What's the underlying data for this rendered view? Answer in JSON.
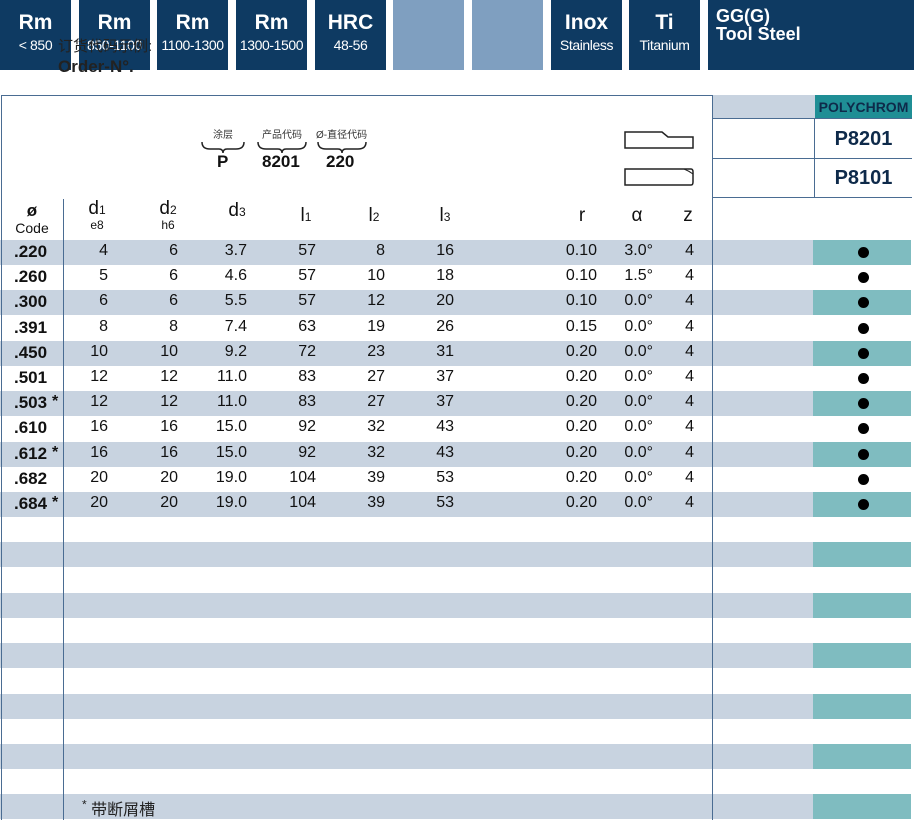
{
  "materials": [
    {
      "big": "Rm",
      "small": "< 850",
      "style": "dark"
    },
    {
      "big": "Rm",
      "small": "850-1100",
      "style": "dark"
    },
    {
      "big": "Rm",
      "small": "1100-1300",
      "style": "dark"
    },
    {
      "big": "Rm",
      "small": "1300-1500",
      "style": "dark"
    },
    {
      "big": "HRC",
      "small": "48-56",
      "style": "dark"
    },
    {
      "big": "",
      "small": "",
      "style": "light"
    },
    {
      "big": "",
      "small": "",
      "style": "light"
    },
    {
      "big": "Inox",
      "small": "Stainless",
      "style": "dark"
    },
    {
      "big": "Ti",
      "small": "Titanium",
      "style": "dark"
    },
    {
      "big": "GG(G)\nTool Steel",
      "small": "",
      "style": "dark"
    }
  ],
  "order_example": {
    "label_cn": "订货代码示例:",
    "label_en": "Order-N°.",
    "coating_label": "涂层",
    "coating_value": "P",
    "product_label": "产品代码",
    "product_value": "8201",
    "diameter_label": "Ø-直径代码",
    "diameter_value": "220"
  },
  "grade_header": "POLYCHROM",
  "grades": [
    "P8201",
    "P8101"
  ],
  "headers": {
    "code_symbol": "ø",
    "code_label": "Code",
    "d1": "d",
    "d1_sub": "1",
    "d1_tol": "e8",
    "d2": "d",
    "d2_sub": "2",
    "d2_tol": "h6",
    "d3": "d",
    "d3_sub": "3",
    "l1": "l",
    "l1_sub": "1",
    "l2": "l",
    "l2_sub": "2",
    "l3": "l",
    "l3_sub": "3",
    "r": "r",
    "alpha": "α",
    "z": "z"
  },
  "rows": [
    {
      "code": ".220",
      "star": "",
      "d1": "4",
      "d2": "6",
      "d3": "3.7",
      "l1": "57",
      "l2": "8",
      "l3": "16",
      "r": "0.10",
      "alpha": "3.0°",
      "z": "4",
      "dot": true
    },
    {
      "code": ".260",
      "star": "",
      "d1": "5",
      "d2": "6",
      "d3": "4.6",
      "l1": "57",
      "l2": "10",
      "l3": "18",
      "r": "0.10",
      "alpha": "1.5°",
      "z": "4",
      "dot": true
    },
    {
      "code": ".300",
      "star": "",
      "d1": "6",
      "d2": "6",
      "d3": "5.5",
      "l1": "57",
      "l2": "12",
      "l3": "20",
      "r": "0.10",
      "alpha": "0.0°",
      "z": "4",
      "dot": true
    },
    {
      "code": ".391",
      "star": "",
      "d1": "8",
      "d2": "8",
      "d3": "7.4",
      "l1": "63",
      "l2": "19",
      "l3": "26",
      "r": "0.15",
      "alpha": "0.0°",
      "z": "4",
      "dot": true
    },
    {
      "code": ".450",
      "star": "",
      "d1": "10",
      "d2": "10",
      "d3": "9.2",
      "l1": "72",
      "l2": "23",
      "l3": "31",
      "r": "0.20",
      "alpha": "0.0°",
      "z": "4",
      "dot": true
    },
    {
      "code": ".501",
      "star": "",
      "d1": "12",
      "d2": "12",
      "d3": "11.0",
      "l1": "83",
      "l2": "27",
      "l3": "37",
      "r": "0.20",
      "alpha": "0.0°",
      "z": "4",
      "dot": true
    },
    {
      "code": ".503",
      "star": "*",
      "d1": "12",
      "d2": "12",
      "d3": "11.0",
      "l1": "83",
      "l2": "27",
      "l3": "37",
      "r": "0.20",
      "alpha": "0.0°",
      "z": "4",
      "dot": true
    },
    {
      "code": ".610",
      "star": "",
      "d1": "16",
      "d2": "16",
      "d3": "15.0",
      "l1": "92",
      "l2": "32",
      "l3": "43",
      "r": "0.20",
      "alpha": "0.0°",
      "z": "4",
      "dot": true
    },
    {
      "code": ".612",
      "star": "*",
      "d1": "16",
      "d2": "16",
      "d3": "15.0",
      "l1": "92",
      "l2": "32",
      "l3": "43",
      "r": "0.20",
      "alpha": "0.0°",
      "z": "4",
      "dot": true
    },
    {
      "code": ".682",
      "star": "",
      "d1": "20",
      "d2": "20",
      "d3": "19.0",
      "l1": "104",
      "l2": "39",
      "l3": "53",
      "r": "0.20",
      "alpha": "0.0°",
      "z": "4",
      "dot": true
    },
    {
      "code": ".684",
      "star": "*",
      "d1": "20",
      "d2": "20",
      "d3": "19.0",
      "l1": "104",
      "l2": "39",
      "l3": "53",
      "r": "0.20",
      "alpha": "0.0°",
      "z": "4",
      "dot": true
    }
  ],
  "footnote_mark": "*",
  "footnote": "带断屑槽",
  "colors": {
    "dark_box": "#0e3a62",
    "light_box": "#7f9fc0",
    "row_shade": "#c8d3e0",
    "teal": "#1f8e95",
    "teal_light": "#7fbcc0"
  }
}
